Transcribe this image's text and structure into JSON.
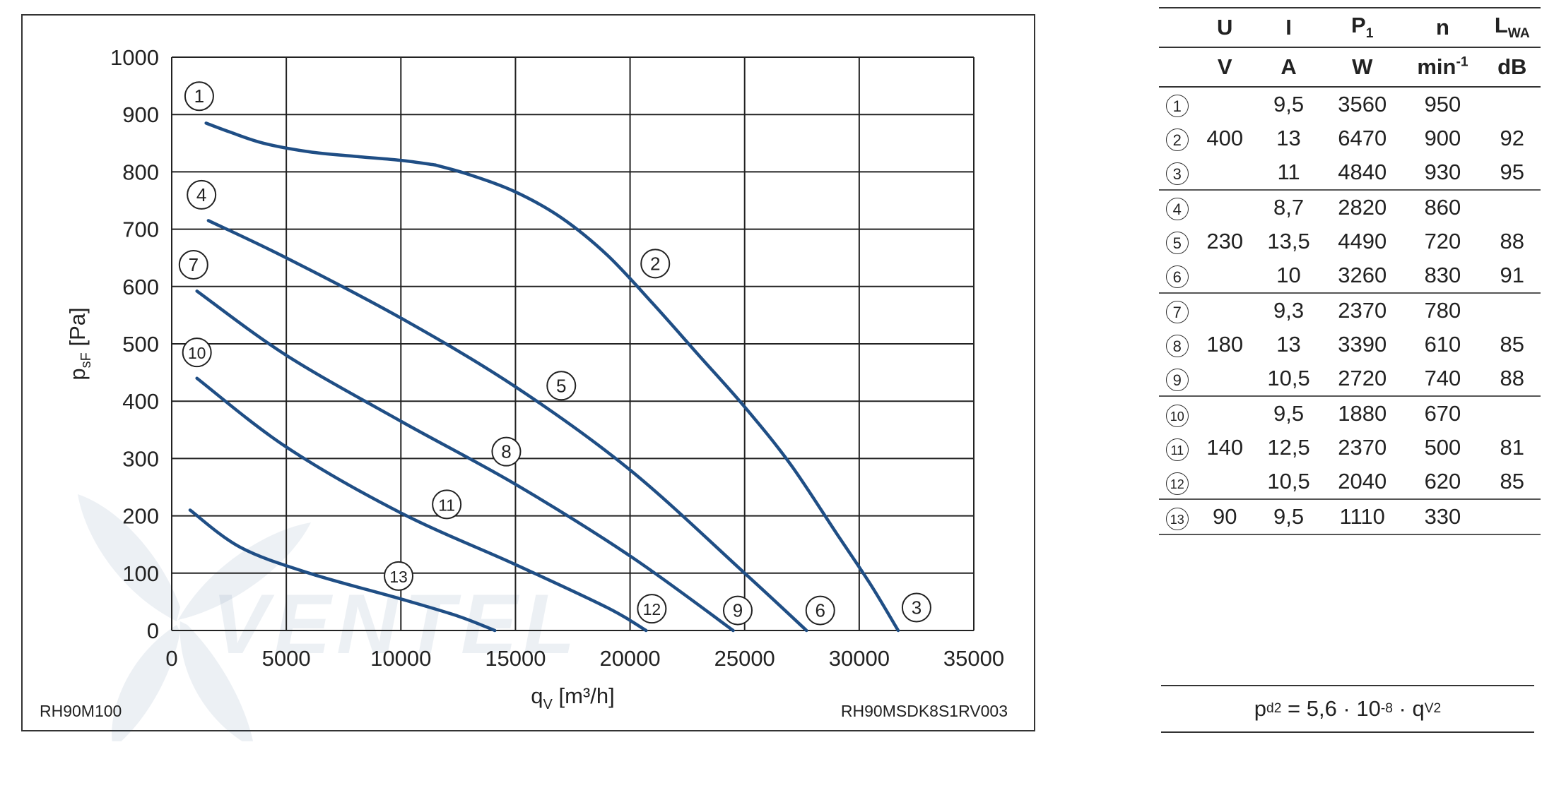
{
  "chart_data": {
    "type": "line",
    "xlabel_main": "q",
    "xlabel_sub": "V",
    "xlabel_unit": "[m³/h]",
    "ylabel_main": "p",
    "ylabel_sub": "sF",
    "ylabel_unit": "[Pa]",
    "xlim": [
      0,
      35000
    ],
    "ylim": [
      0,
      1000
    ],
    "xticks": [
      "0",
      "5000",
      "10000",
      "15000",
      "20000",
      "25000",
      "30000",
      "35000"
    ],
    "yticks": [
      "0",
      "100",
      "200",
      "300",
      "400",
      "500",
      "600",
      "700",
      "800",
      "900",
      "1000"
    ],
    "grid": true,
    "footer_left": "RH90M100",
    "footer_right": "RH90MSDK8S1RV003",
    "series": [
      {
        "label": "1",
        "x": [
          1500,
          2500,
          4000,
          6000,
          8000,
          10000,
          11500
        ],
        "y": [
          885,
          870,
          850,
          835,
          827,
          820,
          812
        ]
      },
      {
        "label": "2",
        "x": [
          11500,
          13000,
          15000,
          17000,
          19000,
          21000,
          23000,
          25000,
          27000,
          29000,
          30500,
          31700
        ],
        "y": [
          812,
          795,
          765,
          720,
          655,
          570,
          480,
          390,
          290,
          170,
          80,
          0
        ]
      },
      {
        "label": "4",
        "x": [
          1600,
          5000,
          10000,
          15000,
          20000,
          25000,
          27700
        ],
        "y": [
          715,
          650,
          545,
          425,
          280,
          100,
          0
        ]
      },
      {
        "label": "7",
        "x": [
          1100,
          5000,
          10000,
          15000,
          20000,
          24500
        ],
        "y": [
          592,
          480,
          365,
          255,
          130,
          0
        ]
      },
      {
        "label": "10",
        "x": [
          1100,
          5000,
          10000,
          15000,
          19000,
          20700
        ],
        "y": [
          440,
          320,
          205,
          115,
          40,
          0
        ]
      },
      {
        "label": "13",
        "x": [
          800,
          3000,
          6000,
          10000,
          12500,
          14100
        ],
        "y": [
          210,
          145,
          100,
          55,
          25,
          0
        ]
      }
    ],
    "labels": [
      {
        "text": "1",
        "x": 1200,
        "y": 932
      },
      {
        "text": "2",
        "x": 21100,
        "y": 640
      },
      {
        "text": "3",
        "x": 32500,
        "y": 40
      },
      {
        "text": "4",
        "x": 1300,
        "y": 760
      },
      {
        "text": "5",
        "x": 17000,
        "y": 427
      },
      {
        "text": "6",
        "x": 28300,
        "y": 35
      },
      {
        "text": "7",
        "x": 950,
        "y": 638
      },
      {
        "text": "8",
        "x": 14600,
        "y": 312
      },
      {
        "text": "9",
        "x": 24700,
        "y": 35
      },
      {
        "text": "10",
        "x": 1100,
        "y": 485
      },
      {
        "text": "11",
        "x": 12000,
        "y": 220
      },
      {
        "text": "12",
        "x": 20950,
        "y": 38
      },
      {
        "text": "13",
        "x": 9900,
        "y": 95
      }
    ],
    "line_color": "#1f4e85",
    "watermark_text": "VENTEL"
  },
  "table": {
    "header1": [
      "",
      "U",
      "I",
      "P",
      "n",
      "L"
    ],
    "header1_subs": [
      "",
      "",
      "",
      "1",
      "",
      "WA"
    ],
    "header2": [
      "",
      "V",
      "A",
      "W",
      "min",
      "dB"
    ],
    "header2_sup": "-1",
    "rows": [
      {
        "id": "1",
        "U": "",
        "I": "9,5",
        "P": "3560",
        "n": "950",
        "L": ""
      },
      {
        "id": "2",
        "U": "400",
        "I": "13",
        "P": "6470",
        "n": "900",
        "L": "92"
      },
      {
        "id": "3",
        "U": "",
        "I": "11",
        "P": "4840",
        "n": "930",
        "L": "95"
      },
      {
        "id": "4",
        "U": "",
        "I": "8,7",
        "P": "2820",
        "n": "860",
        "L": ""
      },
      {
        "id": "5",
        "U": "230",
        "I": "13,5",
        "P": "4490",
        "n": "720",
        "L": "88"
      },
      {
        "id": "6",
        "U": "",
        "I": "10",
        "P": "3260",
        "n": "830",
        "L": "91"
      },
      {
        "id": "7",
        "U": "",
        "I": "9,3",
        "P": "2370",
        "n": "780",
        "L": ""
      },
      {
        "id": "8",
        "U": "180",
        "I": "13",
        "P": "3390",
        "n": "610",
        "L": "85"
      },
      {
        "id": "9",
        "U": "",
        "I": "10,5",
        "P": "2720",
        "n": "740",
        "L": "88"
      },
      {
        "id": "10",
        "U": "",
        "I": "9,5",
        "P": "1880",
        "n": "670",
        "L": ""
      },
      {
        "id": "11",
        "U": "140",
        "I": "12,5",
        "P": "2370",
        "n": "500",
        "L": "81"
      },
      {
        "id": "12",
        "U": "",
        "I": "10,5",
        "P": "2040",
        "n": "620",
        "L": "85"
      },
      {
        "id": "13",
        "U": "90",
        "I": "9,5",
        "P": "1110",
        "n": "330",
        "L": ""
      }
    ]
  },
  "formula": {
    "lhs": "p",
    "lhs_sub": "d2",
    "eq": " = 5,6 · 10",
    "exp": "-8",
    "mid": " · q",
    "q_sub": "V",
    "q_sup": "2"
  }
}
